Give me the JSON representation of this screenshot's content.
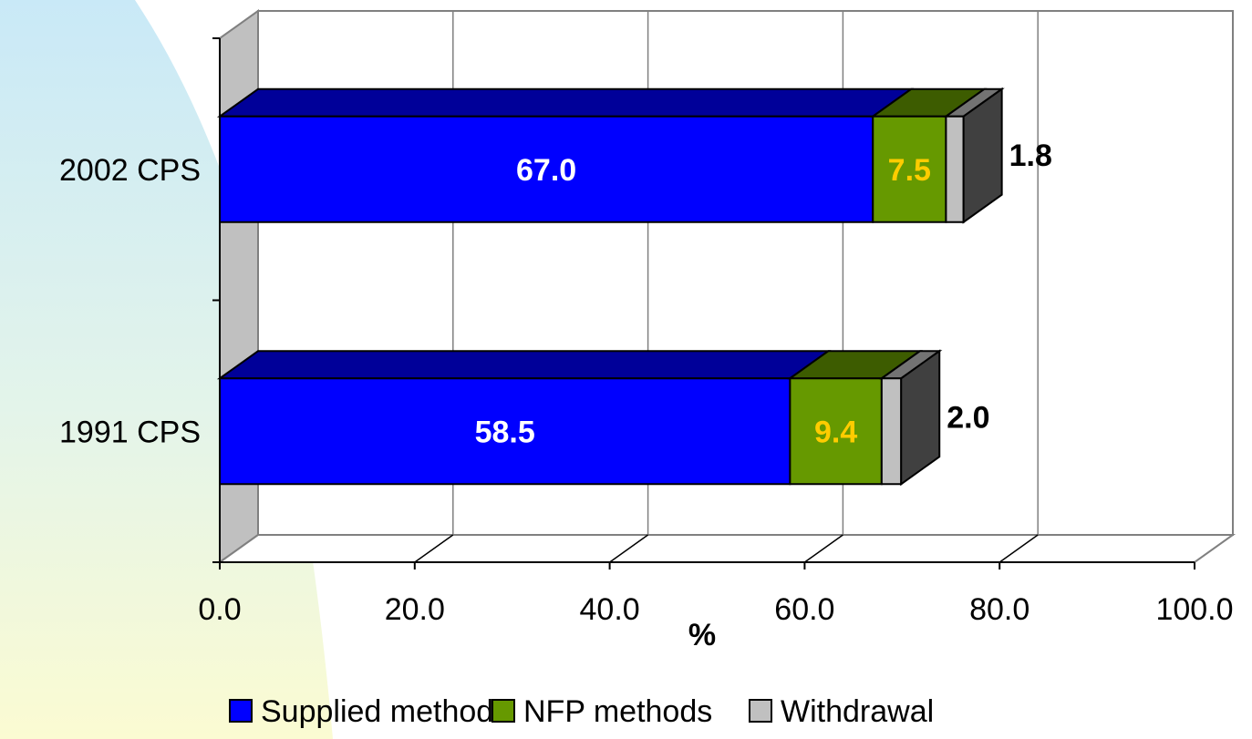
{
  "chart_data": {
    "type": "bar",
    "orientation": "horizontal",
    "stacked": true,
    "three_d": true,
    "categories": [
      "1991 CPS",
      "2002 CPS"
    ],
    "series": [
      {
        "name": "Supplied methods",
        "values": [
          58.5,
          67.0
        ],
        "color": "#0000ff",
        "label_color": "#ffffff"
      },
      {
        "name": "NFP methods",
        "values": [
          9.4,
          7.5
        ],
        "color": "#669900",
        "label_color": "#ffcc00"
      },
      {
        "name": "Withdrawal",
        "values": [
          2.0,
          1.8
        ],
        "color": "#c0c0c0",
        "label_color": "#000000"
      }
    ],
    "xlabel": "%",
    "xlim": [
      0,
      100
    ],
    "xticks": [
      "0.0",
      "20.0",
      "40.0",
      "60.0",
      "80.0",
      "100.0"
    ],
    "grid": true,
    "legend": "bottom"
  }
}
